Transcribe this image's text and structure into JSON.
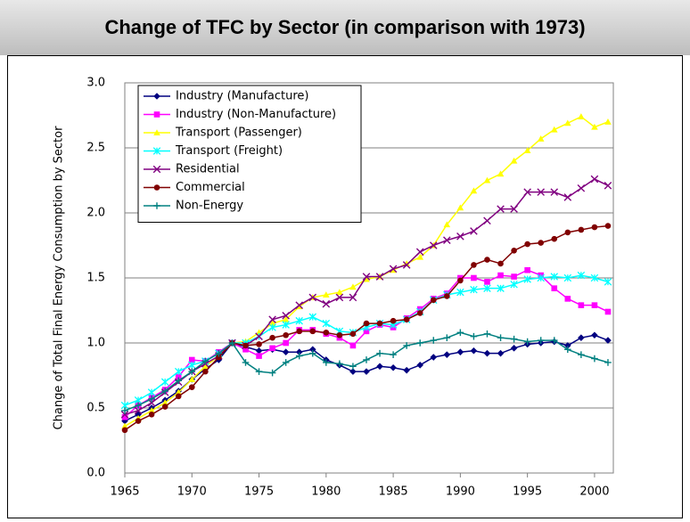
{
  "chart_data": {
    "type": "line",
    "title": "Change of TFC by Sector (in comparison with 1973)",
    "y_label": "Change of Total Final Energy Consumption by Sector",
    "x": [
      1965,
      1966,
      1967,
      1968,
      1969,
      1970,
      1971,
      1972,
      1973,
      1974,
      1975,
      1976,
      1977,
      1978,
      1979,
      1980,
      1981,
      1982,
      1983,
      1984,
      1985,
      1986,
      1987,
      1988,
      1989,
      1990,
      1991,
      1992,
      1993,
      1994,
      1995,
      1996,
      1997,
      1998,
      1999,
      2000,
      2001
    ],
    "xlim": [
      1965,
      2001.4
    ],
    "xticks": [
      1965,
      1970,
      1975,
      1980,
      1985,
      1990,
      1995,
      2000
    ],
    "ylim": [
      0,
      3
    ],
    "yticks": [
      {
        "value": 0,
        "label": "0.0"
      },
      0.5,
      {
        "value": 1,
        "label": "1.0"
      },
      1.5,
      {
        "value": 2,
        "label": "2.0"
      },
      2.5,
      {
        "value": 3,
        "label": "3.0"
      }
    ],
    "grid": true,
    "legend": "upper left",
    "series": [
      {
        "name": "Industry (Manufacture)",
        "color": "#000080",
        "marker": "diamond",
        "values": [
          0.4,
          0.45,
          0.5,
          0.56,
          0.63,
          0.72,
          0.8,
          0.87,
          1.0,
          0.97,
          0.94,
          0.95,
          0.93,
          0.93,
          0.95,
          0.87,
          0.83,
          0.78,
          0.78,
          0.82,
          0.81,
          0.79,
          0.83,
          0.89,
          0.91,
          0.93,
          0.94,
          0.92,
          0.92,
          0.96,
          0.99,
          1.0,
          1.01,
          0.98,
          1.04,
          1.06,
          1.02
        ]
      },
      {
        "name": "Industry (Non-Manufacture)",
        "color": "#ff00ff",
        "marker": "square",
        "values": [
          0.43,
          0.52,
          0.58,
          0.64,
          0.74,
          0.87,
          0.86,
          0.93,
          1.0,
          0.95,
          0.9,
          0.96,
          1.0,
          1.1,
          1.1,
          1.07,
          1.04,
          0.98,
          1.09,
          1.14,
          1.12,
          1.19,
          1.26,
          1.34,
          1.38,
          1.5,
          1.5,
          1.47,
          1.52,
          1.51,
          1.56,
          1.52,
          1.42,
          1.34,
          1.29,
          1.29,
          1.24
        ]
      },
      {
        "name": "Transport (Passenger)",
        "color": "#ffff00",
        "marker": "triangle",
        "values": [
          0.36,
          0.42,
          0.48,
          0.54,
          0.62,
          0.72,
          0.82,
          0.9,
          1.0,
          1.01,
          1.08,
          1.15,
          1.18,
          1.28,
          1.35,
          1.37,
          1.39,
          1.43,
          1.49,
          1.51,
          1.56,
          1.61,
          1.66,
          1.75,
          1.91,
          2.04,
          2.17,
          2.25,
          2.3,
          2.4,
          2.48,
          2.57,
          2.64,
          2.69,
          2.74,
          2.66,
          2.7
        ]
      },
      {
        "name": "Transport (Freight)",
        "color": "#00ffff",
        "marker": "asterisk",
        "values": [
          0.52,
          0.56,
          0.62,
          0.7,
          0.78,
          0.83,
          0.86,
          0.92,
          1.0,
          1.0,
          1.05,
          1.12,
          1.14,
          1.17,
          1.2,
          1.15,
          1.09,
          1.08,
          1.12,
          1.15,
          1.14,
          1.18,
          1.24,
          1.33,
          1.37,
          1.39,
          1.41,
          1.42,
          1.42,
          1.45,
          1.49,
          1.5,
          1.51,
          1.5,
          1.52,
          1.5,
          1.47
        ]
      },
      {
        "name": "Residential",
        "color": "#800080",
        "marker": "cross",
        "values": [
          0.45,
          0.48,
          0.54,
          0.62,
          0.7,
          0.78,
          0.84,
          0.9,
          1.0,
          0.98,
          1.05,
          1.18,
          1.21,
          1.29,
          1.35,
          1.3,
          1.35,
          1.35,
          1.51,
          1.51,
          1.57,
          1.6,
          1.7,
          1.75,
          1.79,
          1.82,
          1.86,
          1.94,
          2.03,
          2.03,
          2.16,
          2.16,
          2.16,
          2.12,
          2.19,
          2.26,
          2.21
        ]
      },
      {
        "name": "Commercial",
        "color": "#800000",
        "marker": "circle",
        "values": [
          0.33,
          0.4,
          0.45,
          0.51,
          0.59,
          0.66,
          0.78,
          0.89,
          1.0,
          0.98,
          0.99,
          1.04,
          1.06,
          1.09,
          1.09,
          1.08,
          1.06,
          1.07,
          1.15,
          1.15,
          1.17,
          1.18,
          1.23,
          1.33,
          1.36,
          1.48,
          1.6,
          1.64,
          1.61,
          1.71,
          1.76,
          1.77,
          1.8,
          1.85,
          1.87,
          1.89,
          1.9
        ]
      },
      {
        "name": "Non-Energy",
        "color": "#008080",
        "marker": "plus",
        "values": [
          0.48,
          0.52,
          0.57,
          0.63,
          0.71,
          0.78,
          0.86,
          0.92,
          1.0,
          0.85,
          0.78,
          0.77,
          0.85,
          0.9,
          0.92,
          0.85,
          0.84,
          0.82,
          0.87,
          0.92,
          0.91,
          0.98,
          1.0,
          1.02,
          1.04,
          1.08,
          1.05,
          1.07,
          1.04,
          1.03,
          1.01,
          1.02,
          1.02,
          0.95,
          0.91,
          0.88,
          0.85
        ]
      }
    ]
  }
}
